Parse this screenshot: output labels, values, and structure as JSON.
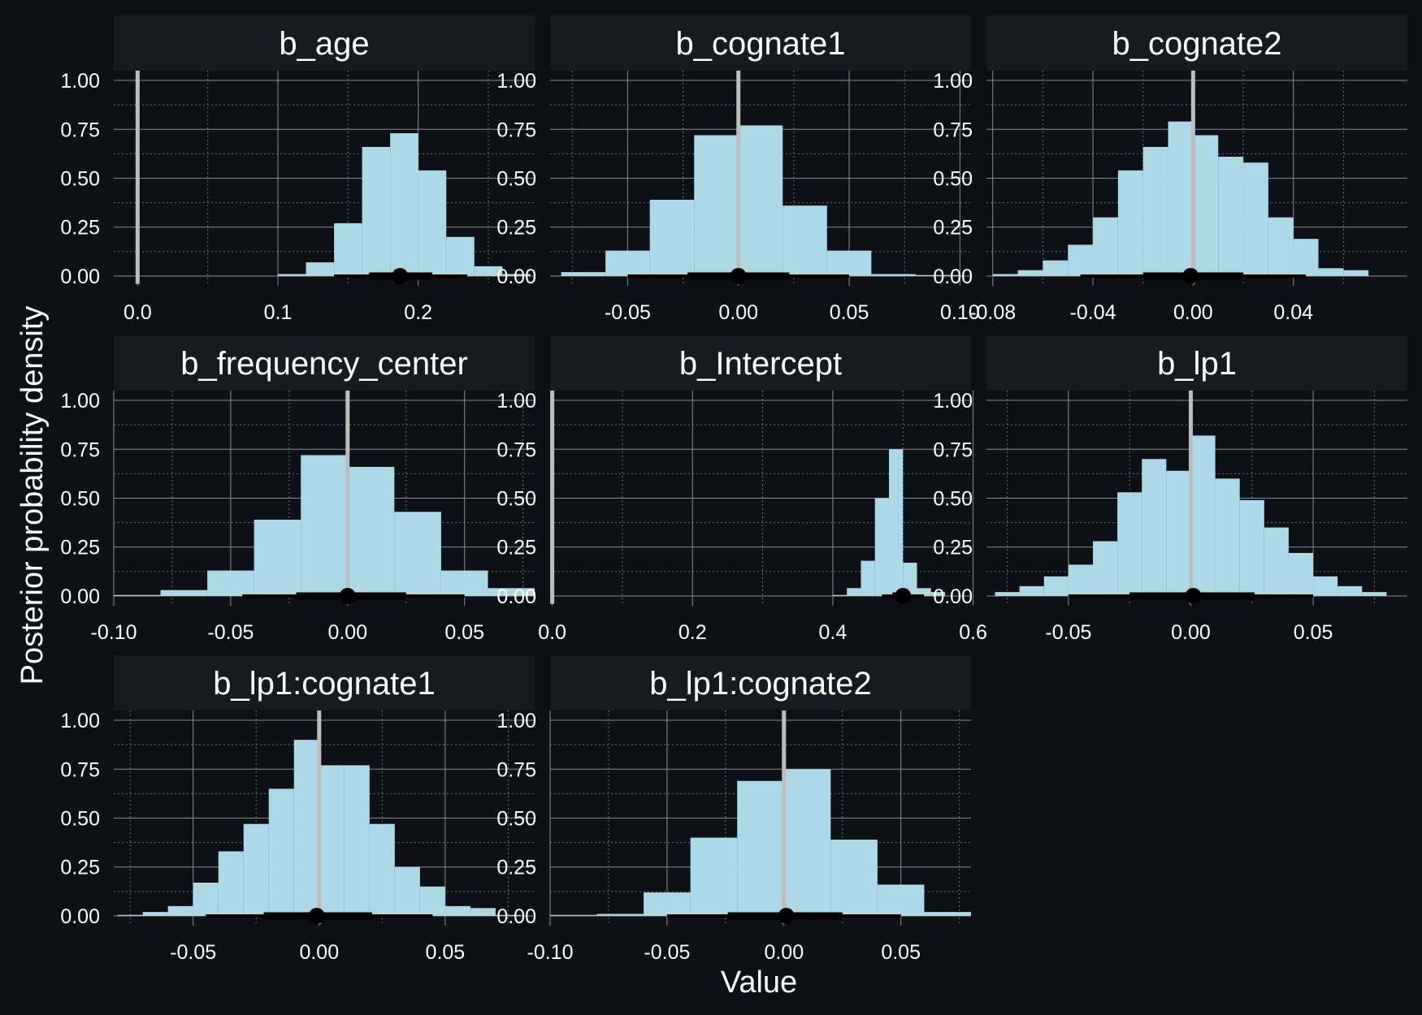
{
  "figure": {
    "xlabel": "Value",
    "ylabel": "Posterior probability density",
    "colors": {
      "background": "#0d1117",
      "strip": "#161b22",
      "bar": "#add8e6",
      "zero_line": "#bdbdbd",
      "interval": "#000000",
      "text": "#ffffff"
    }
  },
  "chart_data": [
    {
      "type": "bar",
      "title": "b_age",
      "xlim": [
        -0.017,
        0.283
      ],
      "ylim": [
        -0.05,
        1.05
      ],
      "xticks": [
        {
          "v": 0.0,
          "label": "0.0"
        },
        {
          "v": 0.1,
          "label": "0.1"
        },
        {
          "v": 0.2,
          "label": "0.2"
        }
      ],
      "yticks": [
        {
          "v": 0.0,
          "label": "0.00"
        },
        {
          "v": 0.25,
          "label": "0.25"
        },
        {
          "v": 0.5,
          "label": "0.50"
        },
        {
          "v": 0.75,
          "label": "0.75"
        },
        {
          "v": 1.0,
          "label": "1.00"
        }
      ],
      "bin_edges": [
        0.1,
        0.12,
        0.14,
        0.16,
        0.18,
        0.2,
        0.22,
        0.24,
        0.26,
        0.28
      ],
      "density": [
        0.01,
        0.07,
        0.27,
        0.66,
        0.73,
        0.54,
        0.2,
        0.05,
        0.01
      ],
      "point": 0.187,
      "interval_wide": [
        0.14,
        0.235
      ],
      "interval_narrow": [
        0.165,
        0.21
      ],
      "zero_line_top": 1.05
    },
    {
      "type": "bar",
      "title": "b_cognate1",
      "xlim": [
        -0.085,
        0.105
      ],
      "ylim": [
        -0.05,
        1.05
      ],
      "xticks": [
        {
          "v": -0.05,
          "label": "-0.05"
        },
        {
          "v": 0.0,
          "label": "0.00"
        },
        {
          "v": 0.05,
          "label": "0.05"
        },
        {
          "v": 0.1,
          "label": "0.10"
        }
      ],
      "yticks": [
        {
          "v": 0.0,
          "label": "0.00"
        },
        {
          "v": 0.25,
          "label": "0.25"
        },
        {
          "v": 0.5,
          "label": "0.50"
        },
        {
          "v": 0.75,
          "label": "0.75"
        },
        {
          "v": 1.0,
          "label": "1.00"
        }
      ],
      "bin_edges": [
        -0.08,
        -0.06,
        -0.04,
        -0.02,
        0.0,
        0.02,
        0.04,
        0.06,
        0.08,
        0.1
      ],
      "density": [
        0.02,
        0.13,
        0.39,
        0.72,
        0.77,
        0.36,
        0.13,
        0.01,
        0.005
      ],
      "point": 0.0,
      "interval_wide": [
        -0.05,
        0.05
      ],
      "interval_narrow": [
        -0.023,
        0.023
      ],
      "zero_line_top": 1.05
    },
    {
      "type": "bar",
      "title": "b_cognate2",
      "xlim": [
        -0.0825,
        0.0855
      ],
      "ylim": [
        -0.05,
        1.05
      ],
      "xticks": [
        {
          "v": -0.08,
          "label": "-0.08"
        },
        {
          "v": -0.04,
          "label": "-0.04"
        },
        {
          "v": 0.0,
          "label": "0.00"
        },
        {
          "v": 0.04,
          "label": "0.04"
        }
      ],
      "yticks": [
        {
          "v": 0.0,
          "label": "0.00"
        },
        {
          "v": 0.25,
          "label": "0.25"
        },
        {
          "v": 0.5,
          "label": "0.50"
        },
        {
          "v": 0.75,
          "label": "0.75"
        },
        {
          "v": 1.0,
          "label": "1.00"
        }
      ],
      "bin_edges": [
        -0.08,
        -0.07,
        -0.06,
        -0.05,
        -0.04,
        -0.03,
        -0.02,
        -0.01,
        0.0,
        0.01,
        0.02,
        0.03,
        0.04,
        0.05,
        0.06,
        0.07,
        0.08
      ],
      "density": [
        0.01,
        0.03,
        0.08,
        0.16,
        0.3,
        0.54,
        0.66,
        0.79,
        0.72,
        0.61,
        0.58,
        0.3,
        0.19,
        0.04,
        0.03,
        0.0
      ],
      "point": -0.001,
      "interval_wide": [
        -0.045,
        0.045
      ],
      "interval_narrow": [
        -0.02,
        0.02
      ],
      "zero_line_top": 1.05
    },
    {
      "type": "bar",
      "title": "b_frequency_center",
      "xlim": [
        -0.1,
        0.08
      ],
      "ylim": [
        -0.05,
        1.05
      ],
      "xticks": [
        {
          "v": -0.1,
          "label": "-0.10"
        },
        {
          "v": -0.05,
          "label": "-0.05"
        },
        {
          "v": 0.0,
          "label": "0.00"
        },
        {
          "v": 0.05,
          "label": "0.05"
        }
      ],
      "yticks": [
        {
          "v": 0.0,
          "label": "0.00"
        },
        {
          "v": 0.25,
          "label": "0.25"
        },
        {
          "v": 0.5,
          "label": "0.50"
        },
        {
          "v": 0.75,
          "label": "0.75"
        },
        {
          "v": 1.0,
          "label": "1.00"
        }
      ],
      "bin_edges": [
        -0.1,
        -0.08,
        -0.06,
        -0.04,
        -0.02,
        0.0,
        0.02,
        0.04,
        0.06,
        0.08
      ],
      "density": [
        0.005,
        0.03,
        0.13,
        0.39,
        0.72,
        0.66,
        0.43,
        0.13,
        0.04
      ],
      "point": 0.0,
      "interval_wide": [
        -0.045,
        0.05
      ],
      "interval_narrow": [
        -0.022,
        0.025
      ],
      "zero_line_top": 1.05
    },
    {
      "type": "bar",
      "title": "b_Intercept",
      "xlim": [
        -0.003,
        0.597
      ],
      "ylim": [
        -0.05,
        1.05
      ],
      "xticks": [
        {
          "v": 0.0,
          "label": "0.0"
        },
        {
          "v": 0.2,
          "label": "0.2"
        },
        {
          "v": 0.4,
          "label": "0.4"
        },
        {
          "v": 0.6,
          "label": "0.6"
        }
      ],
      "yticks": [
        {
          "v": 0.0,
          "label": "0.00"
        },
        {
          "v": 0.25,
          "label": "0.25"
        },
        {
          "v": 0.5,
          "label": "0.50"
        },
        {
          "v": 0.75,
          "label": "0.75"
        },
        {
          "v": 1.0,
          "label": "1.00"
        }
      ],
      "bin_edges": [
        0.4,
        0.42,
        0.44,
        0.46,
        0.48,
        0.5,
        0.52,
        0.54,
        0.56,
        0.58
      ],
      "density": [
        0.005,
        0.04,
        0.18,
        0.5,
        0.75,
        0.17,
        0.04,
        0.02,
        0.0
      ],
      "point": 0.5,
      "interval_wide": [
        0.47,
        0.53
      ],
      "interval_narrow": [
        0.485,
        0.51
      ],
      "zero_line_top": 1.05
    },
    {
      "type": "bar",
      "title": "b_lp1",
      "xlim": [
        -0.0835,
        0.0885
      ],
      "ylim": [
        -0.05,
        1.05
      ],
      "xticks": [
        {
          "v": -0.05,
          "label": "-0.05"
        },
        {
          "v": 0.0,
          "label": "0.00"
        },
        {
          "v": 0.05,
          "label": "0.05"
        }
      ],
      "yticks": [
        {
          "v": 0.0,
          "label": "0.00"
        },
        {
          "v": 0.25,
          "label": "0.25"
        },
        {
          "v": 0.5,
          "label": "0.50"
        },
        {
          "v": 0.75,
          "label": "0.75"
        },
        {
          "v": 1.0,
          "label": "1.00"
        }
      ],
      "bin_edges": [
        -0.08,
        -0.07,
        -0.06,
        -0.05,
        -0.04,
        -0.03,
        -0.02,
        -0.01,
        0.0,
        0.01,
        0.02,
        0.03,
        0.04,
        0.05,
        0.06,
        0.07,
        0.08
      ],
      "density": [
        0.02,
        0.05,
        0.1,
        0.16,
        0.28,
        0.53,
        0.7,
        0.64,
        0.82,
        0.6,
        0.49,
        0.35,
        0.22,
        0.1,
        0.05,
        0.02
      ],
      "point": 0.001,
      "interval_wide": [
        -0.05,
        0.05
      ],
      "interval_narrow": [
        -0.025,
        0.026
      ],
      "zero_line_top": 1.05
    },
    {
      "type": "bar",
      "title": "b_lp1:cognate1",
      "xlim": [
        -0.0815,
        0.0855
      ],
      "ylim": [
        -0.05,
        1.05
      ],
      "xticks": [
        {
          "v": -0.05,
          "label": "-0.05"
        },
        {
          "v": 0.0,
          "label": "0.00"
        },
        {
          "v": 0.05,
          "label": "0.05"
        }
      ],
      "yticks": [
        {
          "v": 0.0,
          "label": "0.00"
        },
        {
          "v": 0.25,
          "label": "0.25"
        },
        {
          "v": 0.5,
          "label": "0.50"
        },
        {
          "v": 0.75,
          "label": "0.75"
        },
        {
          "v": 1.0,
          "label": "1.00"
        }
      ],
      "bin_edges": [
        -0.08,
        -0.07,
        -0.06,
        -0.05,
        -0.04,
        -0.03,
        -0.02,
        -0.01,
        0.0,
        0.01,
        0.02,
        0.03,
        0.04,
        0.05,
        0.06,
        0.07,
        0.08
      ],
      "density": [
        0.005,
        0.02,
        0.05,
        0.17,
        0.33,
        0.47,
        0.65,
        0.9,
        0.77,
        0.77,
        0.47,
        0.25,
        0.15,
        0.05,
        0.04,
        0.005
      ],
      "point": -0.001,
      "interval_wide": [
        -0.045,
        0.045
      ],
      "interval_narrow": [
        -0.022,
        0.021
      ],
      "zero_line_top": 1.05
    },
    {
      "type": "bar",
      "title": "b_lp1:cognate2",
      "xlim": [
        -0.1,
        0.08
      ],
      "ylim": [
        -0.05,
        1.05
      ],
      "xticks": [
        {
          "v": -0.1,
          "label": "-0.10"
        },
        {
          "v": -0.05,
          "label": "-0.05"
        },
        {
          "v": 0.0,
          "label": "0.00"
        },
        {
          "v": 0.05,
          "label": "0.05"
        }
      ],
      "yticks": [
        {
          "v": 0.0,
          "label": "0.00"
        },
        {
          "v": 0.25,
          "label": "0.25"
        },
        {
          "v": 0.5,
          "label": "0.50"
        },
        {
          "v": 0.75,
          "label": "0.75"
        },
        {
          "v": 1.0,
          "label": "1.00"
        }
      ],
      "bin_edges": [
        -0.1,
        -0.08,
        -0.06,
        -0.04,
        -0.02,
        0.0,
        0.02,
        0.04,
        0.06,
        0.08
      ],
      "density": [
        0.005,
        0.01,
        0.12,
        0.4,
        0.69,
        0.75,
        0.39,
        0.16,
        0.02
      ],
      "point": 0.001,
      "interval_wide": [
        -0.05,
        0.05
      ],
      "interval_narrow": [
        -0.024,
        0.025
      ],
      "zero_line_top": 1.05
    }
  ]
}
